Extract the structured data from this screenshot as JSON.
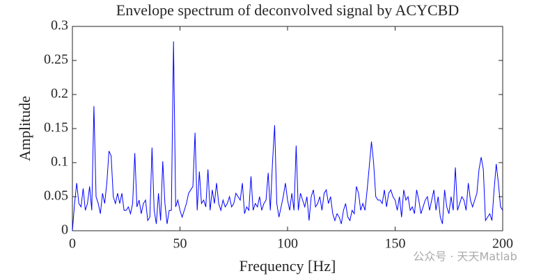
{
  "chart_data": {
    "type": "line",
    "title": "Envelope spectrum of deconvolved signal by ACYCBD",
    "x_label": "Frequency [Hz]",
    "y_label": "Amplitude",
    "watermark": "公众号 · 天天Matlab",
    "color": "#0000ff",
    "x": [
      0,
      1,
      2,
      3,
      4,
      5,
      6,
      7,
      8,
      9,
      10,
      11,
      12,
      13,
      14,
      15,
      16,
      17,
      18,
      19,
      20,
      21,
      22,
      23,
      24,
      25,
      26,
      27,
      28,
      29,
      30,
      31,
      32,
      33,
      34,
      35,
      36,
      37,
      38,
      39,
      40,
      41,
      42,
      43,
      44,
      45,
      46,
      47,
      48,
      49,
      50,
      51,
      52,
      53,
      54,
      55,
      56,
      57,
      58,
      59,
      60,
      61,
      62,
      63,
      64,
      65,
      66,
      67,
      68,
      69,
      70,
      71,
      72,
      73,
      74,
      75,
      76,
      77,
      78,
      79,
      80,
      81,
      82,
      83,
      84,
      85,
      86,
      87,
      88,
      89,
      90,
      91,
      92,
      93,
      94,
      95,
      96,
      97,
      98,
      99,
      100,
      101,
      102,
      103,
      104,
      105,
      106,
      107,
      108,
      109,
      110,
      111,
      112,
      113,
      114,
      115,
      116,
      117,
      118,
      119,
      120,
      121,
      122,
      123,
      124,
      125,
      126,
      127,
      128,
      129,
      130,
      131,
      132,
      133,
      134,
      135,
      136,
      137,
      138,
      139,
      140,
      141,
      142,
      143,
      144,
      145,
      146,
      147,
      148,
      149,
      150,
      151,
      152,
      153,
      154,
      155,
      156,
      157,
      158,
      159,
      160,
      161,
      162,
      163,
      164,
      165,
      166,
      167,
      168,
      169,
      170,
      171,
      172,
      173,
      174,
      175,
      176,
      177,
      178,
      179,
      180,
      181,
      182,
      183,
      184,
      185,
      186,
      187,
      188,
      189,
      190,
      191,
      192,
      193,
      194,
      195,
      196,
      197,
      198,
      199,
      200
    ],
    "values": [
      0.0,
      0.04,
      0.07,
      0.04,
      0.035,
      0.062,
      0.03,
      0.04,
      0.065,
      0.03,
      0.183,
      0.05,
      0.04,
      0.025,
      0.055,
      0.04,
      0.07,
      0.117,
      0.11,
      0.05,
      0.04,
      0.055,
      0.04,
      0.055,
      0.03,
      0.03,
      0.035,
      0.025,
      0.04,
      0.114,
      0.035,
      0.045,
      0.025,
      0.04,
      0.045,
      0.015,
      0.02,
      0.122,
      0.03,
      0.01,
      0.055,
      0.015,
      0.102,
      0.04,
      0.01,
      0.03,
      0.03,
      0.278,
      0.035,
      0.045,
      0.03,
      0.02,
      0.03,
      0.04,
      0.055,
      0.06,
      0.065,
      0.144,
      0.03,
      0.087,
      0.04,
      0.045,
      0.035,
      0.09,
      0.03,
      0.06,
      0.04,
      0.07,
      0.04,
      0.03,
      0.045,
      0.035,
      0.04,
      0.05,
      0.035,
      0.04,
      0.055,
      0.05,
      0.045,
      0.07,
      0.025,
      0.035,
      0.03,
      0.08,
      0.03,
      0.04,
      0.035,
      0.05,
      0.03,
      0.04,
      0.045,
      0.085,
      0.03,
      0.1,
      0.155,
      0.04,
      0.02,
      0.035,
      0.05,
      0.07,
      0.045,
      0.03,
      0.055,
      0.03,
      0.125,
      0.03,
      0.055,
      0.045,
      0.035,
      0.05,
      0.015,
      0.05,
      0.06,
      0.035,
      0.04,
      0.05,
      0.03,
      0.055,
      0.06,
      0.04,
      0.05,
      0.025,
      0.015,
      0.025,
      0.02,
      0.01,
      0.03,
      0.04,
      0.02,
      0.015,
      0.03,
      0.025,
      0.065,
      0.055,
      0.03,
      0.04,
      0.03,
      0.06,
      0.095,
      0.131,
      0.1,
      0.05,
      0.045,
      0.045,
      0.04,
      0.06,
      0.035,
      0.055,
      0.06,
      0.05,
      0.045,
      0.03,
      0.05,
      0.02,
      0.06,
      0.045,
      0.05,
      0.03,
      0.035,
      0.025,
      0.06,
      0.045,
      0.025,
      0.035,
      0.045,
      0.05,
      0.03,
      0.045,
      0.06,
      0.03,
      0.05,
      0.02,
      0.01,
      0.06,
      0.035,
      0.025,
      0.05,
      0.03,
      0.093,
      0.03,
      0.04,
      0.05,
      0.045,
      0.03,
      0.07,
      0.045,
      0.035,
      0.045,
      0.055,
      0.09,
      0.108,
      0.09,
      0.015,
      0.02,
      0.025,
      0.015,
      0.06,
      0.098,
      0.07,
      0.035,
      0.03
    ],
    "xlim": [
      0,
      200
    ],
    "xticks": [
      0,
      50,
      100,
      150,
      200
    ],
    "ylim": [
      0,
      0.3
    ],
    "yticks": [
      0,
      0.05,
      0.1,
      0.15,
      0.2,
      0.25,
      0.3
    ]
  }
}
